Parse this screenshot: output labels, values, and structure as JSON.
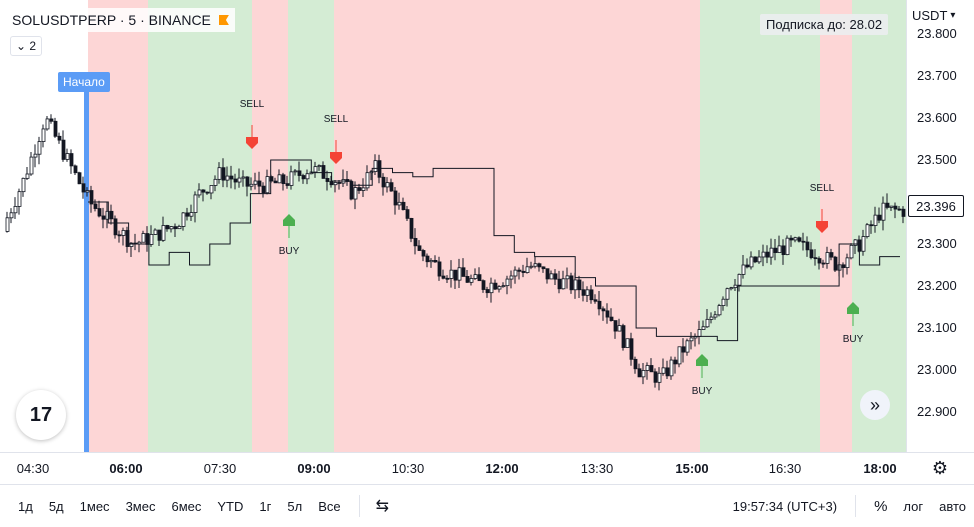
{
  "legend": {
    "symbol": "SOLUSDTPERP · 5 · BINANCE",
    "indicator_count": "2"
  },
  "subscription": "Подписка до: 28.02",
  "currency": "USDT",
  "start_marker": "Начало",
  "current_price": "23.396",
  "price_ticks": [
    "23.800",
    "23.700",
    "23.600",
    "23.500",
    "23.400",
    "23.300",
    "23.200",
    "23.100",
    "23.000",
    "22.900"
  ],
  "time_labels": [
    {
      "label": "04:30",
      "bold": false
    },
    {
      "label": "06:00",
      "bold": true
    },
    {
      "label": "07:30",
      "bold": false
    },
    {
      "label": "09:00",
      "bold": true
    },
    {
      "label": "10:30",
      "bold": false
    },
    {
      "label": "12:00",
      "bold": true
    },
    {
      "label": "13:30",
      "bold": false
    },
    {
      "label": "15:00",
      "bold": true
    },
    {
      "label": "16:30",
      "bold": false
    },
    {
      "label": "18:00",
      "bold": true
    }
  ],
  "signals": [
    {
      "type": "SELL",
      "label": "SELL"
    },
    {
      "type": "SELL",
      "label": "SELL"
    },
    {
      "type": "BUY",
      "label": "BUY"
    },
    {
      "type": "BUY",
      "label": "BUY"
    },
    {
      "type": "SELL",
      "label": "SELL"
    },
    {
      "type": "BUY",
      "label": "BUY"
    }
  ],
  "colors": {
    "buy": "#4caf50",
    "sell": "#f44336",
    "up": "#131722",
    "bg_green": "#d4ecd4",
    "bg_red": "#fdd6d6",
    "start_line": "#5b9cf6"
  },
  "ranges": [
    "1д",
    "5д",
    "1мес",
    "3мес",
    "6мес",
    "YTD",
    "1г",
    "5л",
    "Все"
  ],
  "compare_icon": "compare-icon",
  "clock": "19:57:34 (UTC+3)",
  "percent_label": "%",
  "log_label": "лог",
  "auto_label": "авто",
  "logo_text": "17",
  "chart_data": {
    "type": "candlestick",
    "title": "SOLUSDTPERP · 5 · BINANCE",
    "ylim": [
      22.85,
      23.82
    ],
    "trend_line": [
      23.4,
      23.35,
      23.3,
      23.25,
      23.28,
      23.25,
      23.3,
      23.35,
      23.42,
      23.5,
      23.5,
      23.47,
      23.45,
      23.44,
      23.48,
      23.47,
      23.46,
      23.48,
      23.48,
      23.48,
      23.32,
      23.28,
      23.27,
      23.27,
      23.22,
      23.2,
      23.2,
      23.1,
      23.08,
      23.08,
      23.08,
      23.07,
      23.2,
      23.2,
      23.2,
      23.2,
      23.2,
      23.3,
      23.25,
      23.27,
      23.27
    ]
  }
}
